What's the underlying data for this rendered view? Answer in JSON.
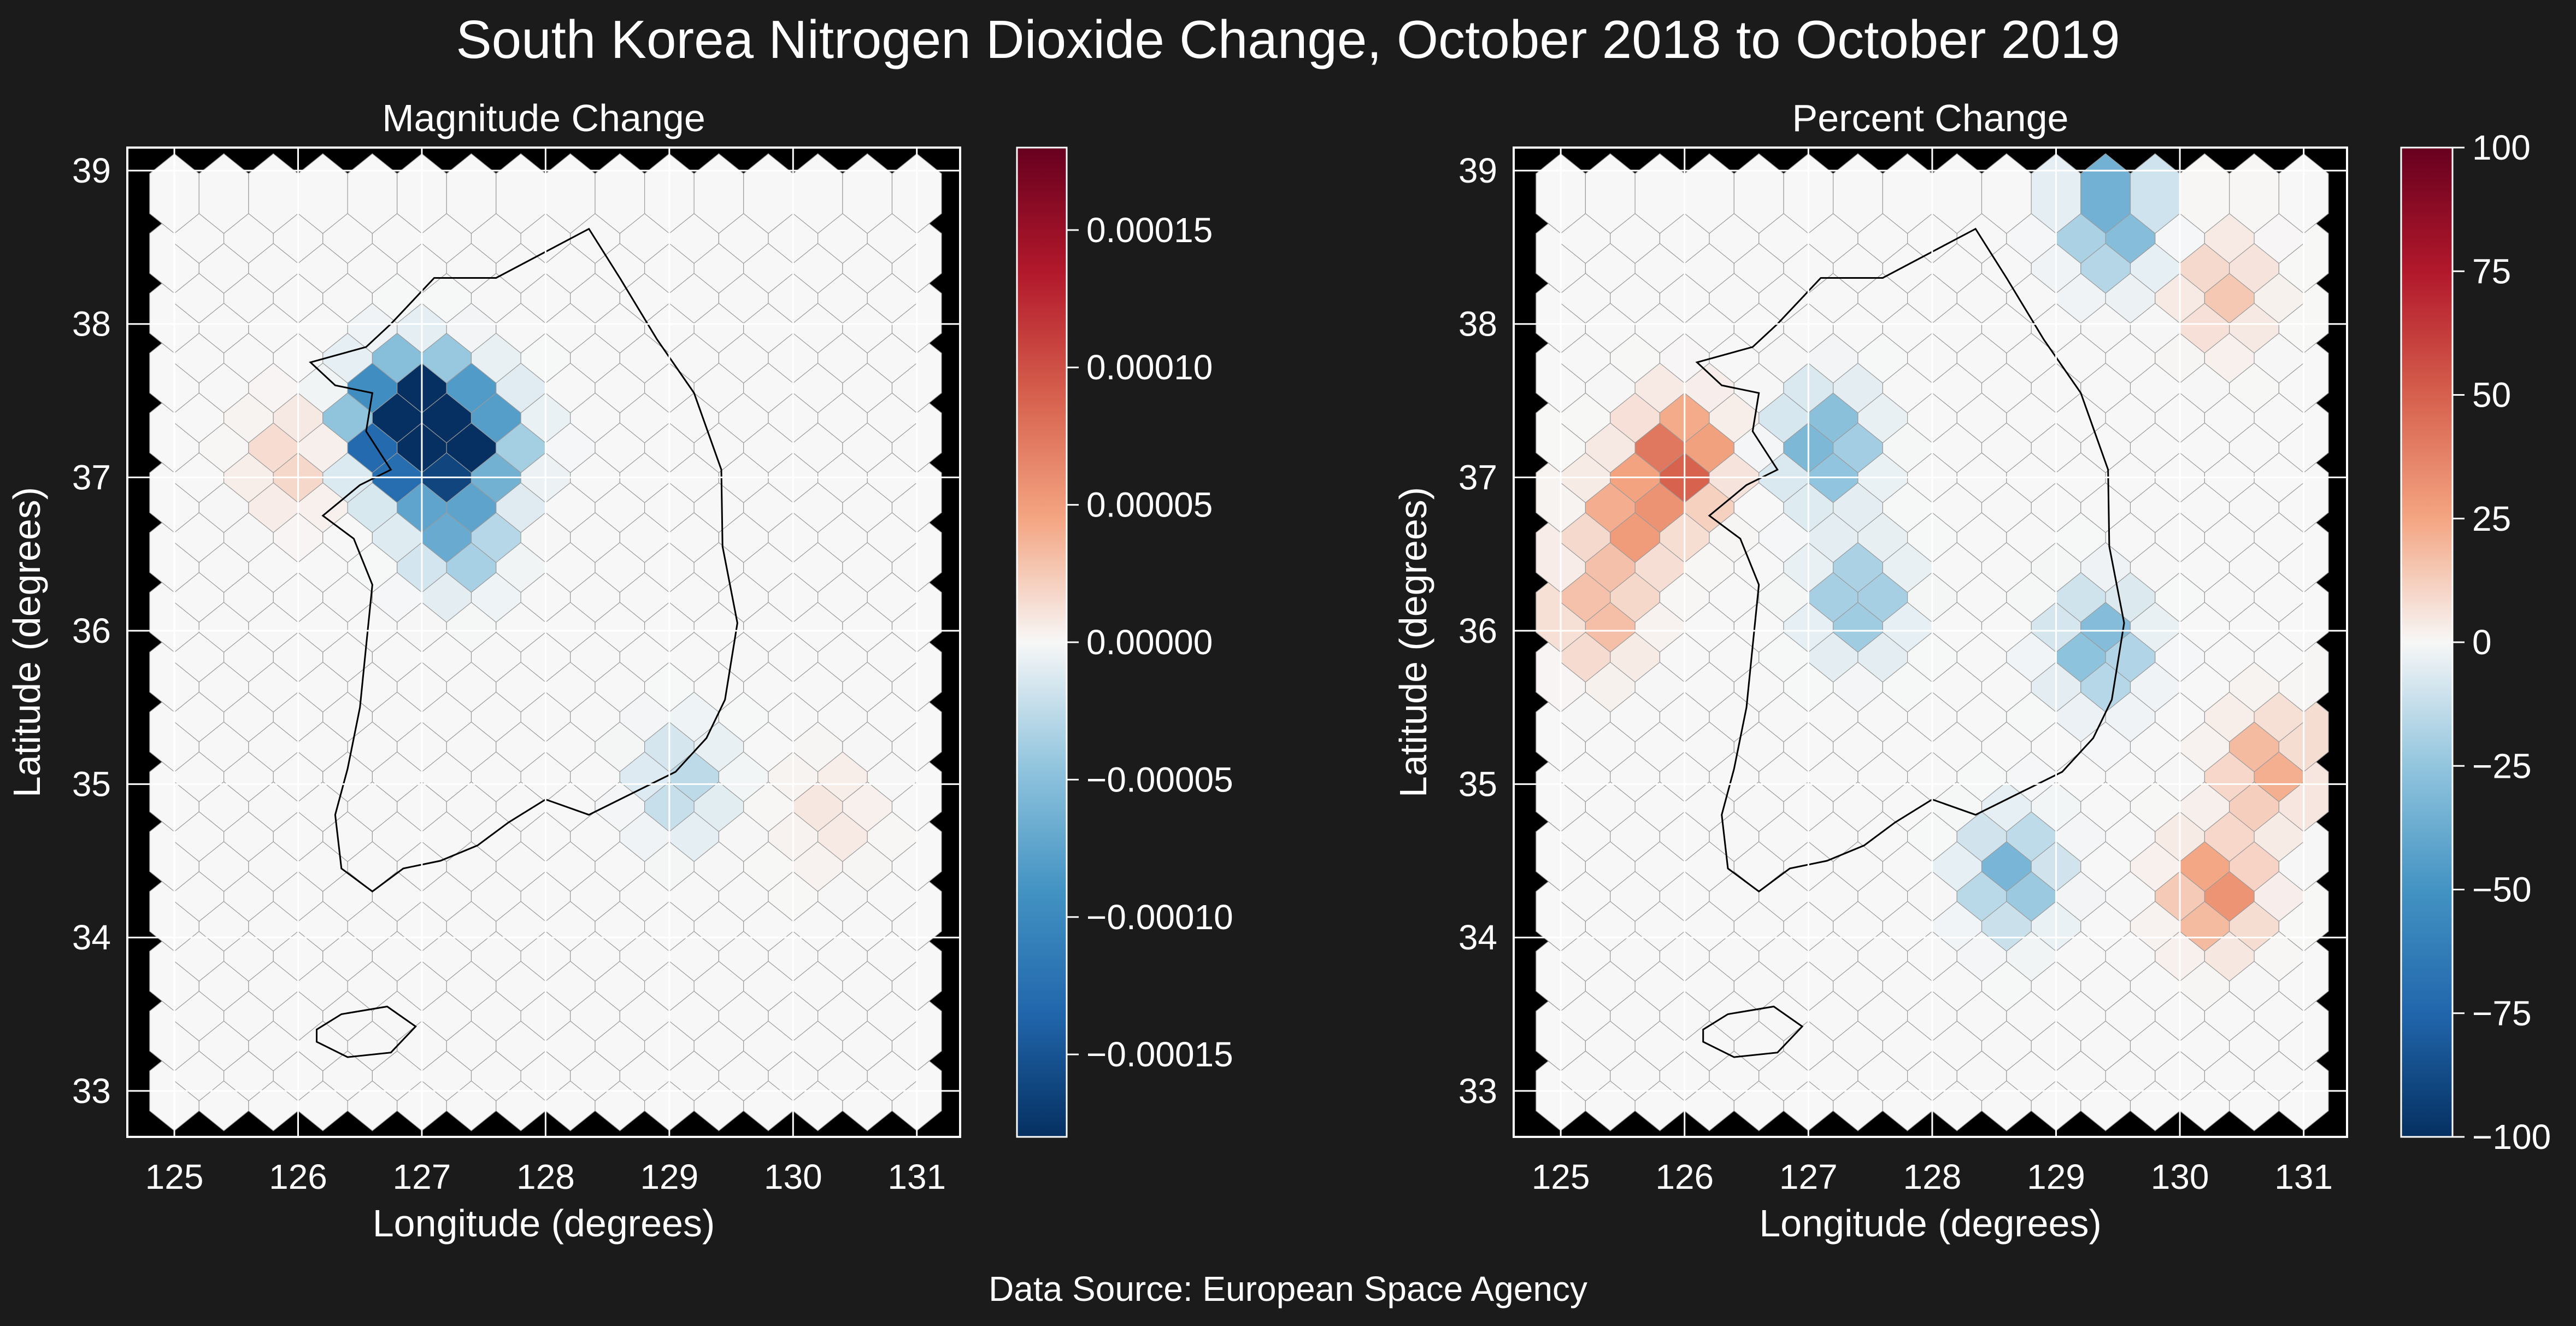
{
  "title": "South Korea Nitrogen Dioxide Change, October 2018 to October 2019",
  "source": "Data Source: European Space Agency",
  "chart_data": [
    {
      "type": "heatmap",
      "subtype": "hexbin-map",
      "title": "Magnitude Change",
      "xlabel": "Longitude (degrees)",
      "ylabel": "Latitude (degrees)",
      "xlim": [
        124.62,
        131.35
      ],
      "ylim": [
        32.7,
        39.15
      ],
      "xticks": [
        "125",
        "126",
        "127",
        "128",
        "129",
        "130",
        "131"
      ],
      "yticks": [
        "33",
        "34",
        "35",
        "36",
        "37",
        "38",
        "39"
      ],
      "grid": true,
      "colormap": "RdBu_r",
      "color_range": [
        -0.00018,
        0.00018
      ],
      "colorbar_ticks": [
        "0.00015",
        "0.00010",
        "0.00005",
        "0.00000",
        "−0.00005",
        "−0.00010",
        "−0.00015"
      ],
      "colorbar_tick_values": [
        0.00015,
        0.0001,
        5e-05,
        0,
        -5e-05,
        -0.0001,
        -0.00015
      ],
      "hotspots": [
        {
          "lon": 127.0,
          "lat": 37.5,
          "value": -0.00017
        },
        {
          "lon": 126.75,
          "lat": 37.45,
          "value": -0.00015
        },
        {
          "lon": 127.25,
          "lat": 37.4,
          "value": -0.00013
        },
        {
          "lon": 127.0,
          "lat": 37.2,
          "value": -0.0001
        },
        {
          "lon": 127.3,
          "lat": 36.75,
          "value": -7e-05
        },
        {
          "lon": 127.55,
          "lat": 37.3,
          "value": -6e-05
        },
        {
          "lon": 125.95,
          "lat": 37.2,
          "value": 2e-05
        },
        {
          "lon": 129.1,
          "lat": 35.1,
          "value": -3e-05
        },
        {
          "lon": 130.3,
          "lat": 34.9,
          "value": 1e-05
        }
      ]
    },
    {
      "type": "heatmap",
      "subtype": "hexbin-map",
      "title": "Percent Change",
      "xlabel": "Longitude (degrees)",
      "ylabel": "Latitude (degrees)",
      "xlim": [
        124.62,
        131.35
      ],
      "ylim": [
        32.7,
        39.15
      ],
      "xticks": [
        "125",
        "126",
        "127",
        "128",
        "129",
        "130",
        "131"
      ],
      "yticks": [
        "33",
        "34",
        "35",
        "36",
        "37",
        "38",
        "39"
      ],
      "grid": true,
      "colormap": "RdBu_r",
      "color_range": [
        -100,
        100
      ],
      "colorbar_ticks": [
        "100",
        "75",
        "50",
        "25",
        "0",
        "−25",
        "−50",
        "−75",
        "−100"
      ],
      "colorbar_tick_values": [
        100,
        75,
        50,
        25,
        0,
        -25,
        -50,
        -75,
        -100
      ],
      "hotspots": [
        {
          "lon": 125.95,
          "lat": 37.2,
          "value": 55
        },
        {
          "lon": 125.55,
          "lat": 36.8,
          "value": 30
        },
        {
          "lon": 125.3,
          "lat": 36.2,
          "value": 20
        },
        {
          "lon": 127.15,
          "lat": 37.3,
          "value": -40
        },
        {
          "lon": 127.4,
          "lat": 36.3,
          "value": -30
        },
        {
          "lon": 128.65,
          "lat": 34.5,
          "value": -35
        },
        {
          "lon": 129.35,
          "lat": 36.0,
          "value": -35
        },
        {
          "lon": 129.45,
          "lat": 38.75,
          "value": -40
        },
        {
          "lon": 130.3,
          "lat": 34.4,
          "value": 35
        },
        {
          "lon": 130.7,
          "lat": 35.2,
          "value": 25
        },
        {
          "lon": 130.35,
          "lat": 38.3,
          "value": 15
        }
      ]
    }
  ]
}
